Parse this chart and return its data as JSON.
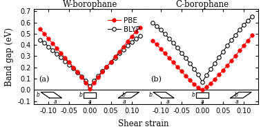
{
  "title_left": "W-borophane",
  "title_right": "C-borophane",
  "xlabel": "Shear strain",
  "ylabel": "Band gap (eV)",
  "label_a": "(a)",
  "label_b": "(b)",
  "ylim": [
    -0.13,
    0.72
  ],
  "xlim": [
    -0.135,
    0.135
  ],
  "yticks": [
    -0.1,
    0.0,
    0.1,
    0.2,
    0.3,
    0.4,
    0.5,
    0.6,
    0.7
  ],
  "xticks": [
    -0.1,
    -0.05,
    0.0,
    0.05,
    0.1
  ],
  "xtick_labels": [
    "-0.10",
    "-0.05",
    "0.00",
    "0.05",
    "0.10"
  ],
  "legend_labels": [
    "PBE",
    "BLYP"
  ],
  "pbe_color": "#FF0000",
  "blyp_color": "#000000",
  "W_PBE_x": [
    -0.12,
    -0.11,
    -0.1,
    -0.09,
    -0.08,
    -0.07,
    -0.06,
    -0.05,
    -0.04,
    -0.03,
    -0.02,
    -0.01,
    0.0,
    0.01,
    0.02,
    0.03,
    0.04,
    0.05,
    0.06,
    0.07,
    0.08,
    0.09,
    0.1,
    0.11,
    0.12
  ],
  "W_PBE_y": [
    0.54,
    0.5,
    0.455,
    0.415,
    0.37,
    0.33,
    0.285,
    0.245,
    0.2,
    0.16,
    0.115,
    0.065,
    0.005,
    0.065,
    0.115,
    0.16,
    0.205,
    0.25,
    0.295,
    0.34,
    0.385,
    0.43,
    0.475,
    0.52,
    0.555
  ],
  "W_BLYP_x": [
    -0.12,
    -0.11,
    -0.1,
    -0.09,
    -0.08,
    -0.07,
    -0.06,
    -0.05,
    -0.04,
    -0.03,
    -0.02,
    -0.01,
    0.0,
    0.01,
    0.02,
    0.03,
    0.04,
    0.05,
    0.06,
    0.07,
    0.08,
    0.09,
    0.1,
    0.11,
    0.12
  ],
  "W_BLYP_y": [
    0.445,
    0.42,
    0.385,
    0.355,
    0.32,
    0.29,
    0.255,
    0.225,
    0.19,
    0.158,
    0.12,
    0.08,
    0.03,
    0.08,
    0.125,
    0.165,
    0.205,
    0.245,
    0.285,
    0.325,
    0.36,
    0.395,
    0.425,
    0.455,
    0.48
  ],
  "C_PBE_x": [
    -0.12,
    -0.11,
    -0.1,
    -0.09,
    -0.08,
    -0.07,
    -0.06,
    -0.05,
    -0.04,
    -0.03,
    -0.02,
    -0.01,
    0.0,
    0.01,
    0.02,
    0.03,
    0.04,
    0.05,
    0.06,
    0.07,
    0.08,
    0.09,
    0.1,
    0.11,
    0.12
  ],
  "C_PBE_y": [
    0.44,
    0.405,
    0.365,
    0.325,
    0.285,
    0.245,
    0.205,
    0.165,
    0.125,
    0.088,
    0.052,
    0.02,
    0.003,
    0.025,
    0.058,
    0.095,
    0.135,
    0.175,
    0.215,
    0.26,
    0.305,
    0.35,
    0.395,
    0.44,
    0.485
  ],
  "C_BLYP_x": [
    -0.12,
    -0.11,
    -0.1,
    -0.09,
    -0.08,
    -0.07,
    -0.06,
    -0.05,
    -0.04,
    -0.03,
    -0.02,
    -0.01,
    0.0,
    0.01,
    0.02,
    0.03,
    0.04,
    0.05,
    0.06,
    0.07,
    0.08,
    0.09,
    0.1,
    0.11,
    0.12
  ],
  "C_BLYP_y": [
    0.6,
    0.57,
    0.535,
    0.498,
    0.458,
    0.418,
    0.375,
    0.33,
    0.285,
    0.238,
    0.188,
    0.135,
    0.07,
    0.13,
    0.185,
    0.238,
    0.29,
    0.342,
    0.393,
    0.443,
    0.49,
    0.535,
    0.578,
    0.618,
    0.655
  ],
  "hline_y": 0.0,
  "background_color": "#FFFFFF",
  "title_fontsize": 8.5,
  "axis_label_fontsize": 8.5,
  "tick_fontsize": 7,
  "legend_fontsize": 7.5,
  "panel_label_fontsize": 8,
  "diagram_label_fontsize": 5.5
}
